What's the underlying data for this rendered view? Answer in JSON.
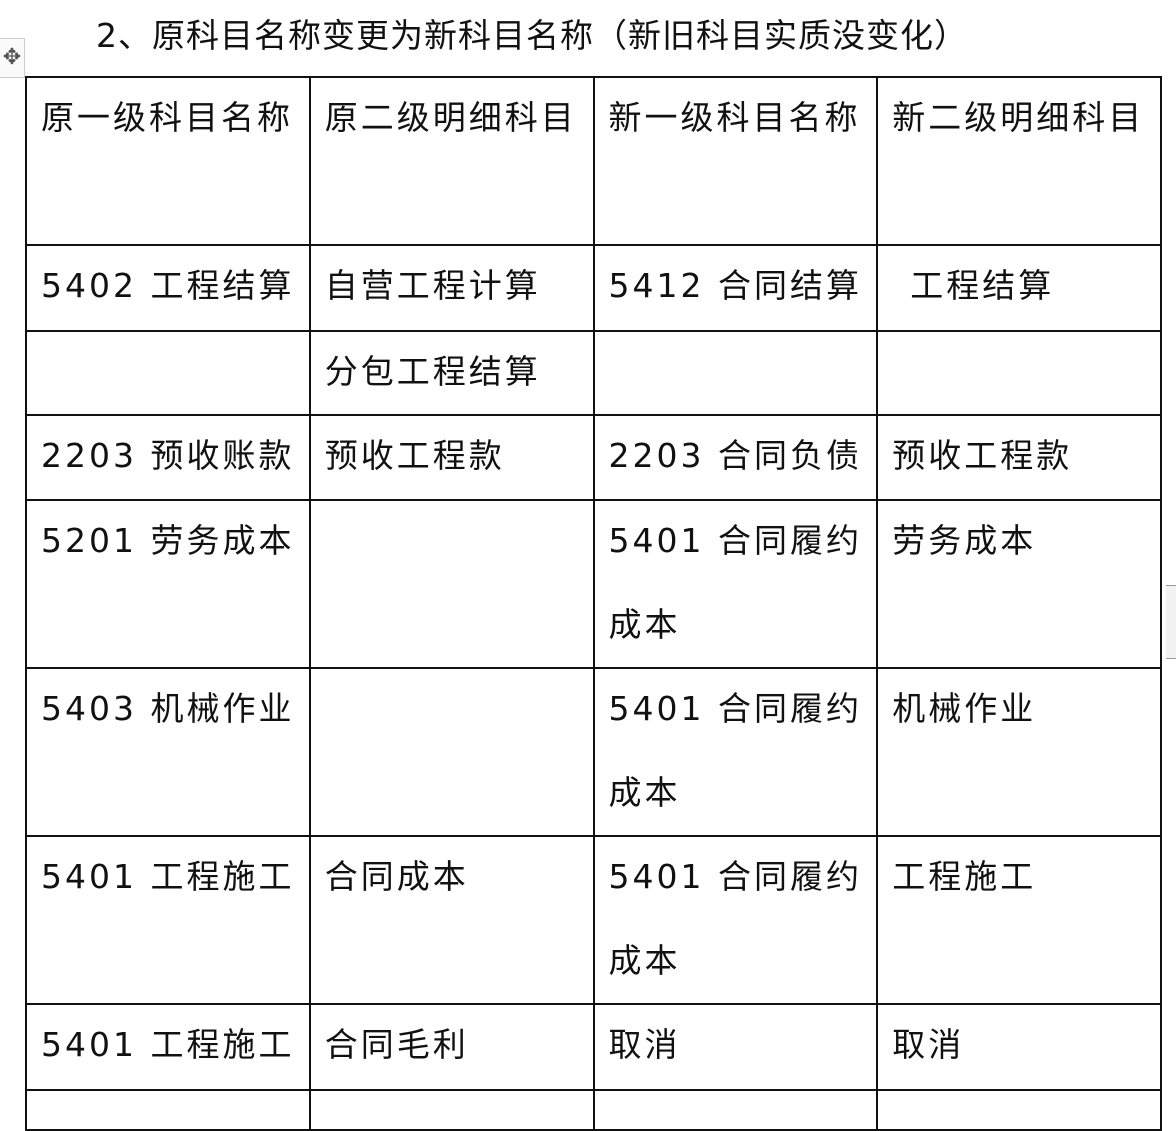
{
  "title": "2、原科目名称变更为新科目名称（新旧科目实质没变化）",
  "icons": {
    "table_move_handle": "move-arrows-icon"
  },
  "table": {
    "headers": [
      "原一级科目名称",
      "原二级明细科目",
      "新一级科目名称",
      "新二级明细科目"
    ],
    "rows": [
      [
        "5402 工程结算",
        "自营工程计算",
        "5412 合同结算",
        "工程结算"
      ],
      [
        "",
        "分包工程结算",
        "",
        ""
      ],
      [
        "2203 预收账款",
        "预收工程款",
        "2203 合同负债",
        "预收工程款"
      ],
      [
        "5201 劳务成本",
        "",
        "5401 合同履约成本",
        "劳务成本"
      ],
      [
        "5403 机械作业",
        "",
        "5401 合同履约成本",
        "机械作业"
      ],
      [
        "5401 工程施工",
        "合同成本",
        "5401 合同履约成本",
        "工程施工"
      ],
      [
        "5401 工程施工",
        "合同毛利",
        "取消",
        "取消"
      ]
    ]
  }
}
